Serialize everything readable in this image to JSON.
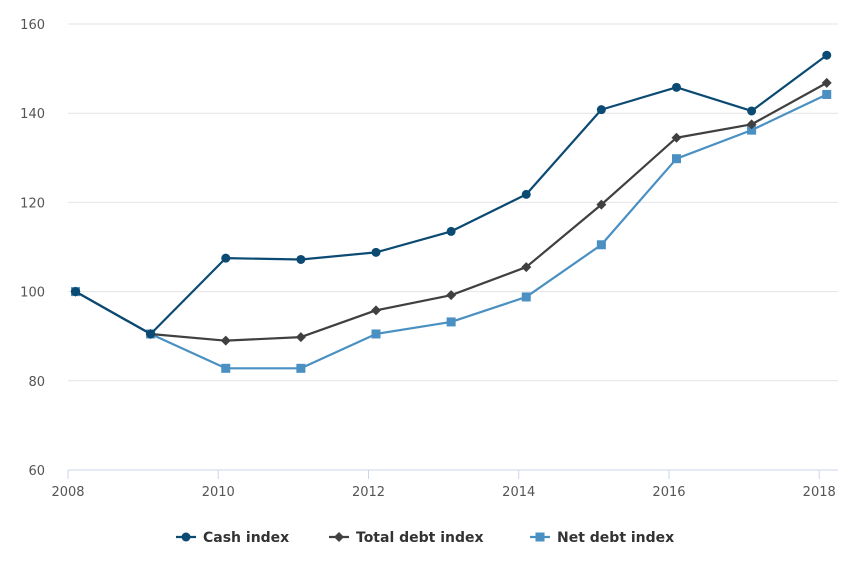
{
  "chart_data": {
    "type": "line",
    "x": [
      2008.1,
      2009.1,
      2010.1,
      2011.1,
      2012.1,
      2013.1,
      2014.1,
      2015.1,
      2016.1,
      2017.1,
      2018.1
    ],
    "series": [
      {
        "name": "Cash index",
        "color": "#0b4a72",
        "marker": "circle",
        "values": [
          100,
          90.5,
          107.5,
          107.2,
          108.8,
          113.5,
          121.8,
          140.8,
          145.8,
          140.5,
          153
        ]
      },
      {
        "name": "Total debt index",
        "color": "#404040",
        "marker": "diamond",
        "values": [
          100,
          90.5,
          89,
          89.8,
          95.8,
          99.2,
          105.5,
          119.5,
          134.5,
          137.5,
          146.8
        ]
      },
      {
        "name": "Net debt index",
        "color": "#4a90c2",
        "marker": "square",
        "values": [
          100,
          90.5,
          82.8,
          82.8,
          90.5,
          93.2,
          98.8,
          110.5,
          129.8,
          136.2,
          144.2
        ]
      }
    ],
    "xticks": [
      "2008",
      "2010",
      "2012",
      "2014",
      "2016",
      "2018"
    ],
    "yticks": [
      "60",
      "80",
      "100",
      "120",
      "140",
      "160"
    ],
    "xlim": [
      2008,
      2018.25
    ],
    "ylim": [
      60,
      160
    ],
    "grid": "horizontal",
    "legend": "bottom-center"
  }
}
